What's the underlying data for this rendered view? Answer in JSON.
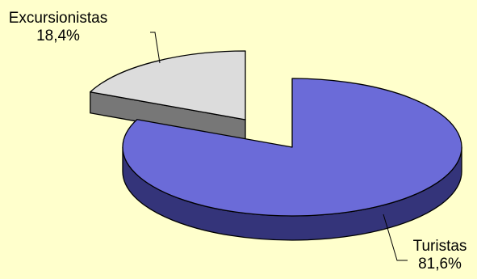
{
  "chart_data": {
    "type": "pie",
    "title": "",
    "exploded": true,
    "three_d": true,
    "slices": [
      {
        "name": "Turistas",
        "value": 81.6,
        "label": "81,6%",
        "color": "#6b6bd8",
        "side_color": "#34347a"
      },
      {
        "name": "Excursionistas",
        "value": 18.4,
        "label": "18,4%",
        "color": "#dcdcdc",
        "side_color": "#777777"
      }
    ]
  },
  "colors": {
    "background": "#ffffcc",
    "outline": "#000000"
  }
}
